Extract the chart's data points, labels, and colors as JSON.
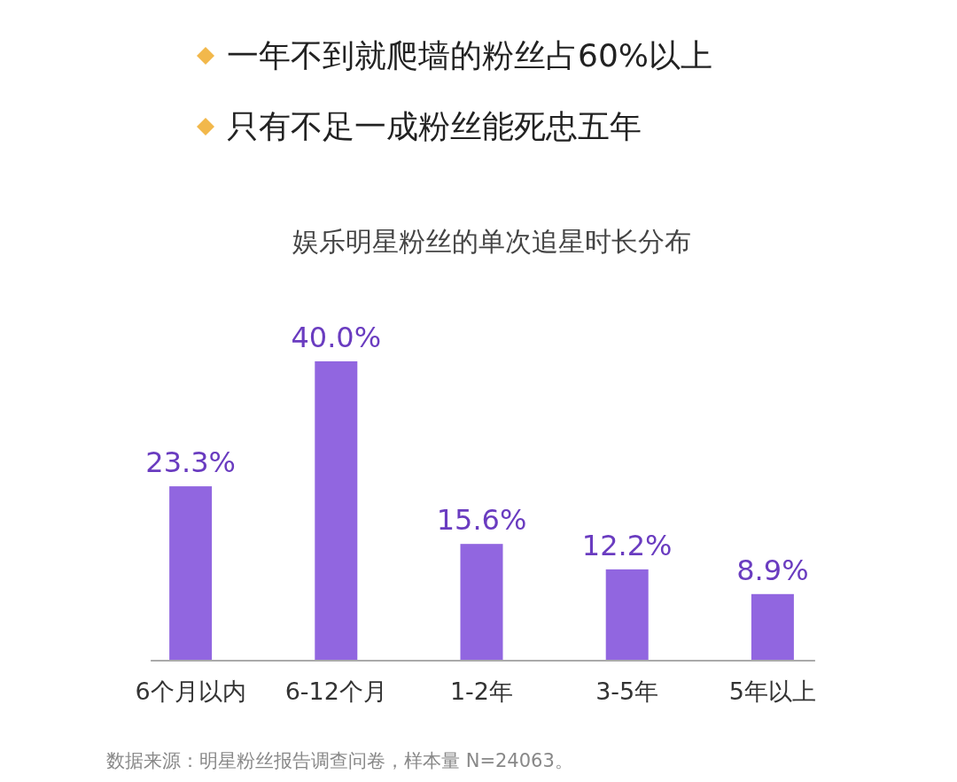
{
  "chart_data": {
    "type": "bar",
    "title": "娱乐明星粉丝的单次追星时长分布",
    "annotations": [
      "一年不到就爬墙的粉丝占60%以上",
      "只有不足一成粉丝能死忠五年",
      "数据来源：明星粉丝报告调查问卷，样本量 N=24063。"
    ],
    "categories": [
      "6个月以内",
      "6-12个月",
      "1-2年",
      "3-5年",
      "5年以上"
    ],
    "values": [
      23.3,
      40.0,
      15.6,
      12.2,
      8.9
    ],
    "value_labels": [
      "23.3%",
      "40.0%",
      "15.6%",
      "12.2%",
      "8.9%"
    ],
    "color": "#9166e0"
  }
}
